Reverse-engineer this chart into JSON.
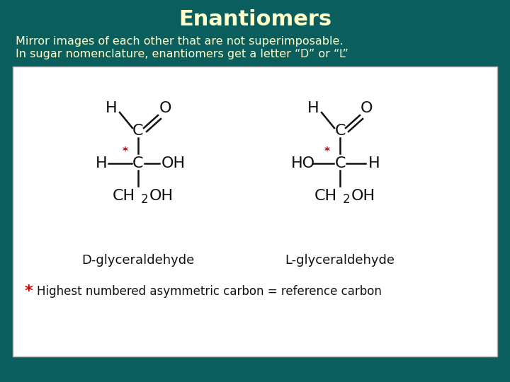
{
  "title": "Enantiomers",
  "subtitle_line1": "Mirror images of each other that are not superimposable.",
  "subtitle_line2": "In sugar nomenclature, enantiomers get a letter “D” or “L”",
  "bg_color": "#0a5e5e",
  "title_color": "#ffffcc",
  "subtitle_color": "#ffffcc",
  "box_color": "#ffffff",
  "label_D": "D-glyceraldehyde",
  "label_L": "L-glyceraldehyde",
  "footnote_star_color": "#cc0000",
  "footnote_text": "Highest numbered asymmetric carbon = reference carbon",
  "label_color": "#111111",
  "star_color": "#cc0000"
}
